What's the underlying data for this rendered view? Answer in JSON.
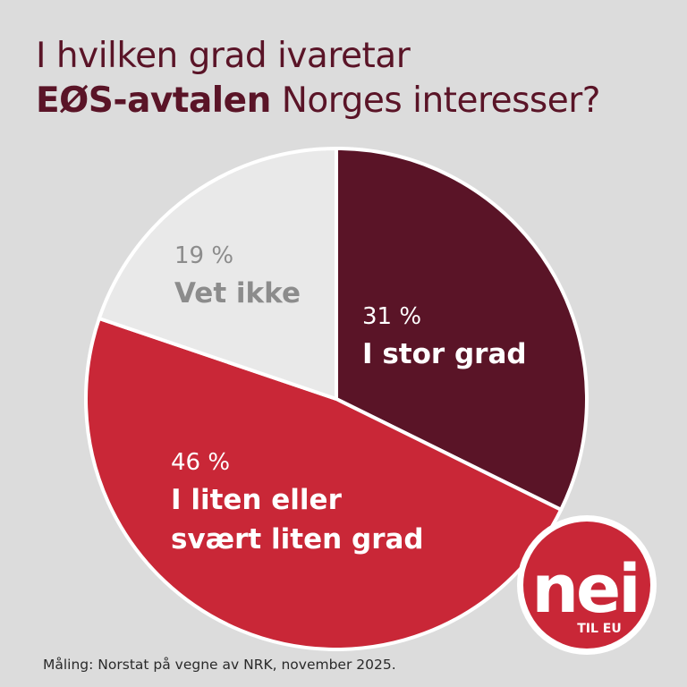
{
  "title": {
    "line1": "I hvilken grad ivaretar",
    "line2_bold": "EØS-avtalen",
    "line2_rest": " Norges interesser?"
  },
  "chart_data": {
    "type": "pie",
    "start_angle_deg": 0,
    "direction": "clockwise",
    "slices": [
      {
        "value": 31,
        "percent_label": "31 %",
        "label_lines": [
          "I stor grad"
        ],
        "color": "#5a1427",
        "text_color": "#ffffff"
      },
      {
        "value": 46,
        "percent_label": "46 %",
        "label_lines": [
          "I liten eller",
          "svært liten grad"
        ],
        "color": "#c92737",
        "text_color": "#ffffff"
      },
      {
        "value": 19,
        "percent_label": "19 %",
        "label_lines": [
          "Vet ikke"
        ],
        "color": "#e9e9e9",
        "text_color": "#8c8c8c"
      }
    ]
  },
  "logo": {
    "word": "nei",
    "sub": "TIL EU",
    "color": "#c92737"
  },
  "source": "Måling: Norstat på vegne av NRK, november 2025."
}
